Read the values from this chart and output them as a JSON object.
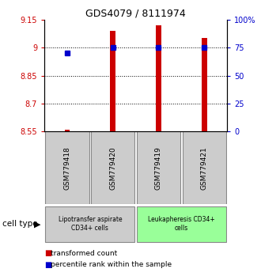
{
  "title": "GDS4079 / 8111974",
  "samples": [
    "GSM779418",
    "GSM779420",
    "GSM779419",
    "GSM779421"
  ],
  "transformed_counts": [
    8.56,
    9.09,
    9.12,
    9.05
  ],
  "percentile_ranks": [
    70,
    75,
    75,
    75
  ],
  "ylim_left": [
    8.55,
    9.15
  ],
  "ylim_right": [
    0,
    100
  ],
  "yticks_left": [
    8.55,
    8.7,
    8.85,
    9.0,
    9.15
  ],
  "ytick_labels_left": [
    "8.55",
    "8.7",
    "8.85",
    "9",
    "9.15"
  ],
  "yticks_right": [
    0,
    25,
    50,
    75,
    100
  ],
  "ytick_labels_right": [
    "0",
    "25",
    "50",
    "75",
    "100%"
  ],
  "bar_color": "#cc0000",
  "dot_color": "#0000cc",
  "bar_bottom": 8.55,
  "cell_type_groups": [
    {
      "label": "Lipotransfer aspirate\nCD34+ cells",
      "samples": [
        0,
        1
      ],
      "color": "#cccccc"
    },
    {
      "label": "Leukapheresis CD34+\ncells",
      "samples": [
        2,
        3
      ],
      "color": "#99ff99"
    }
  ],
  "cell_type_label": "cell type",
  "legend_bar_label": "transformed count",
  "legend_dot_label": "percentile rank within the sample",
  "bg_color": "#ffffff",
  "sample_box_color": "#cccccc",
  "sample_box_edge": "#888888"
}
